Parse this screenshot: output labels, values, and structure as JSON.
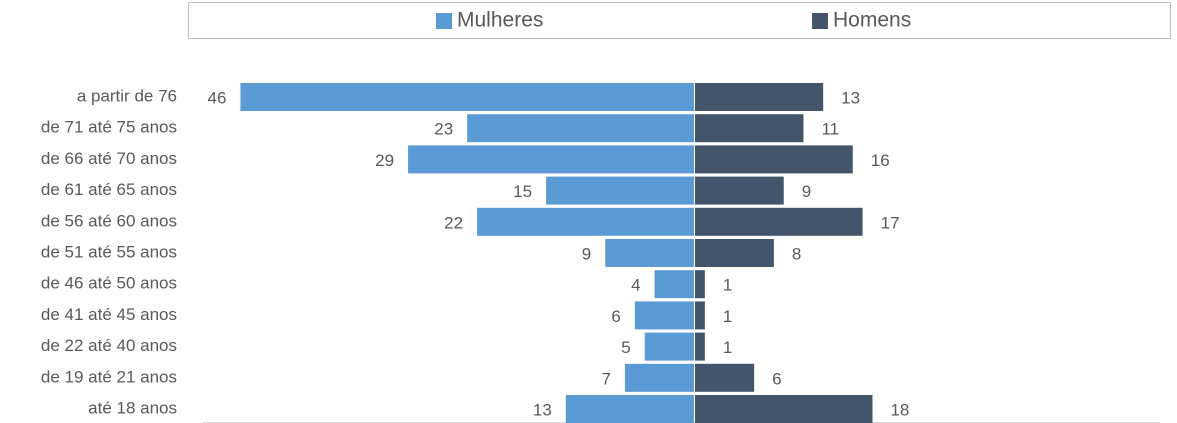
{
  "chart_data": {
    "type": "bar",
    "orientation": "pyramid",
    "categories": [
      "a partir de 76",
      "de 71 até 75 anos",
      "de 66 até 70 anos",
      "de 61 até 65 anos",
      "de 56 até 60 anos",
      "de 51 até 55 anos",
      "de 46 até 50 anos",
      "de 41 até 45 anos",
      "de 22 até 40 anos",
      "de 19 até 21 anos",
      "até 18 anos"
    ],
    "series": [
      {
        "name": "Mulheres",
        "color": "#5b9bd5",
        "values": [
          46,
          23,
          29,
          15,
          22,
          9,
          4,
          6,
          5,
          7,
          13
        ]
      },
      {
        "name": "Homens",
        "color": "#44546a",
        "values": [
          13,
          11,
          16,
          9,
          17,
          8,
          1,
          1,
          1,
          6,
          18
        ]
      }
    ],
    "legend": "top"
  }
}
